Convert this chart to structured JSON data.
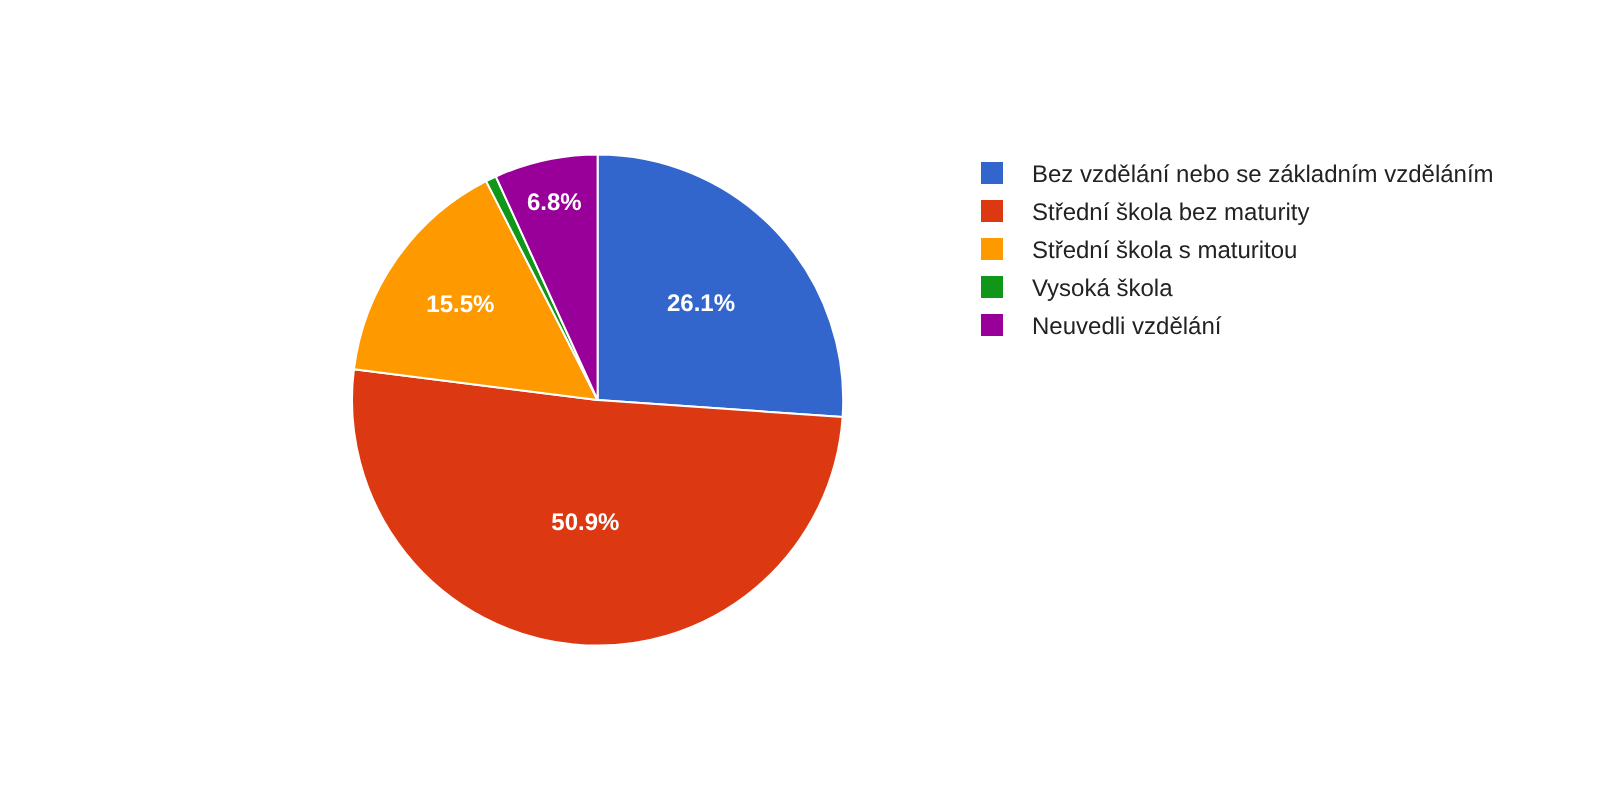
{
  "chart_data": {
    "type": "pie",
    "categories": [
      "Bez vzdělání nebo se základním vzděláním",
      "Střední škola bez maturity",
      "Střední škola s maturitou",
      "Vysoká škola",
      "Neuvedli vzdělání"
    ],
    "values": [
      26.1,
      50.9,
      15.5,
      0.7,
      6.8
    ],
    "colors": [
      "#3366cc",
      "#dc3912",
      "#ff9900",
      "#109618",
      "#990099"
    ],
    "value_labels": [
      "26.1%",
      "50.9%",
      "15.5%",
      null,
      "6.8%"
    ],
    "legend": "right"
  }
}
